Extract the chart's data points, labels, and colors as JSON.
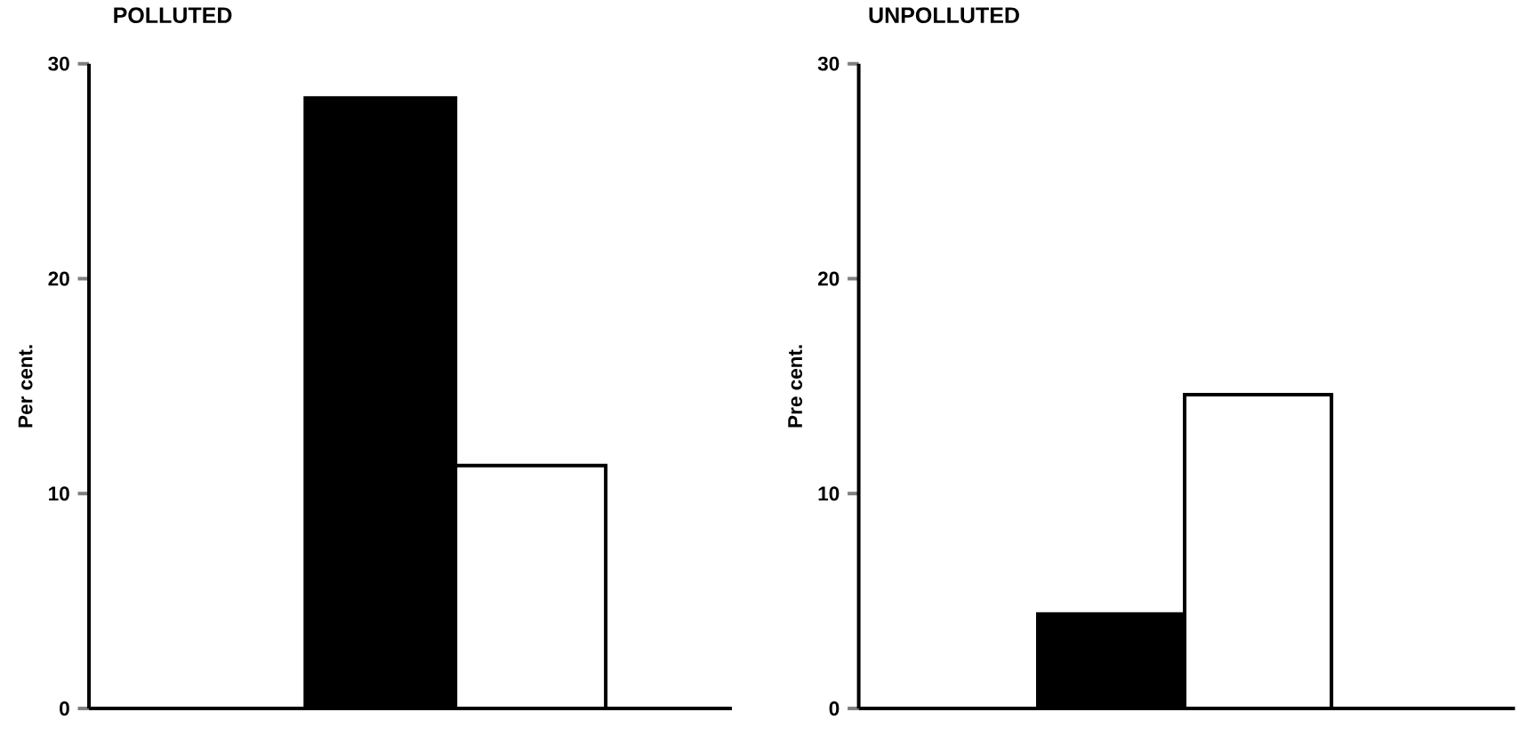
{
  "chart_data": [
    {
      "type": "bar",
      "title": "POLLUTED",
      "ylabel": "Per cent.",
      "categories": [
        null,
        null
      ],
      "values": [
        28.4,
        11.3
      ],
      "colors": [
        "#000000",
        "#ffffff"
      ],
      "ylim": [
        0,
        30
      ],
      "yticks": [
        0,
        10,
        20,
        30
      ],
      "tick_labels": "y"
    },
    {
      "type": "bar",
      "title": "UNPOLLUTED",
      "ylabel": "Pre cent.",
      "categories": [
        null,
        null
      ],
      "values": [
        4.4,
        14.6
      ],
      "colors": [
        "#000000",
        "#ffffff"
      ],
      "ylim": [
        0,
        30
      ],
      "yticks": [
        0,
        10,
        20,
        30
      ],
      "tick_labels": "y"
    }
  ]
}
